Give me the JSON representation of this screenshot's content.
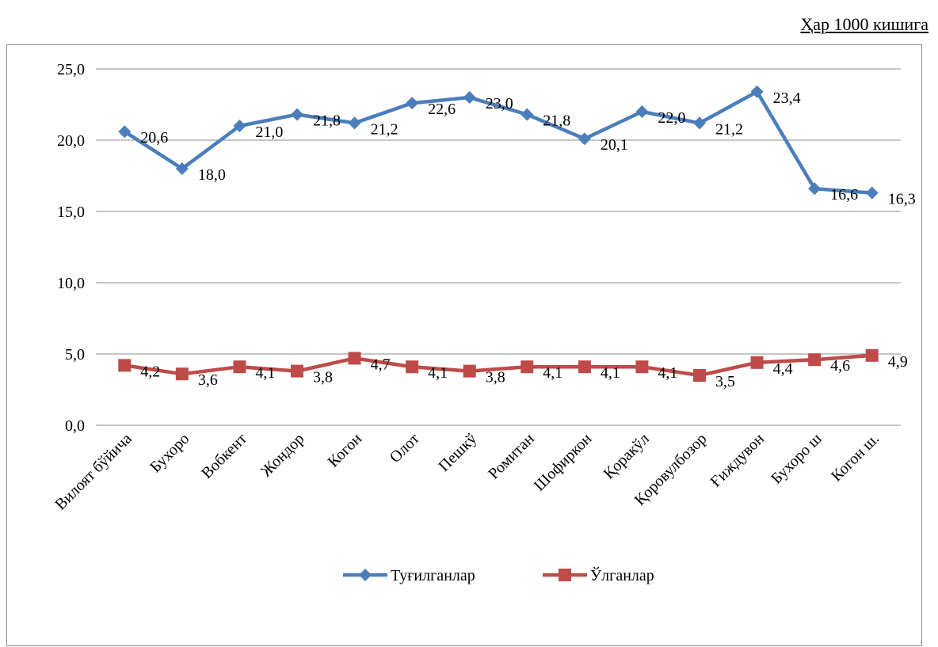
{
  "header": {
    "unit_note": "Ҳар 1000 кишига"
  },
  "colors": {
    "births": "#4a7ebb",
    "deaths": "#be4b48",
    "grid": "#8c8c8c"
  },
  "chart_data": {
    "type": "line",
    "categories": [
      "Вилоят бўйича",
      "Бухоро",
      "Вобкент",
      "Жондор",
      "Когон",
      "Олот",
      "Пешкў",
      "Ромитан",
      "Шофиркон",
      "Қоракўл",
      "Қоровулбозор",
      "Ғиждувон",
      "Бухоро ш",
      "Когон ш."
    ],
    "series": [
      {
        "name": "Туғилганлар",
        "marker": "diamond",
        "values": [
          20.6,
          18.0,
          21.0,
          21.8,
          21.2,
          22.6,
          23.0,
          21.8,
          20.1,
          22.0,
          21.2,
          23.4,
          16.6,
          16.3
        ],
        "labels": [
          "20,6",
          "18,0",
          "21,0",
          "21,8",
          "21,2",
          "22,6",
          "23,0",
          "21,8",
          "20,1",
          "22,0",
          "21,2",
          "23,4",
          "16,6",
          "16,3"
        ]
      },
      {
        "name": "Ўлганлар",
        "marker": "square",
        "values": [
          4.2,
          3.6,
          4.1,
          3.8,
          4.7,
          4.1,
          3.8,
          4.1,
          4.1,
          4.1,
          3.5,
          4.4,
          4.6,
          4.9
        ],
        "labels": [
          "4,2",
          "3,6",
          "4,1",
          "3,8",
          "4,7",
          "4,1",
          "3,8",
          "4,1",
          "4,1",
          "4,1",
          "3,5",
          "4,4",
          "4,6",
          "4,9"
        ]
      }
    ],
    "ylim": [
      0,
      25
    ],
    "yticks": [
      0,
      5,
      10,
      15,
      20,
      25
    ],
    "ytick_labels": [
      "0,0",
      "5,0",
      "10,0",
      "15,0",
      "20,0",
      "25,0"
    ],
    "grid": true,
    "legend_position": "bottom"
  }
}
